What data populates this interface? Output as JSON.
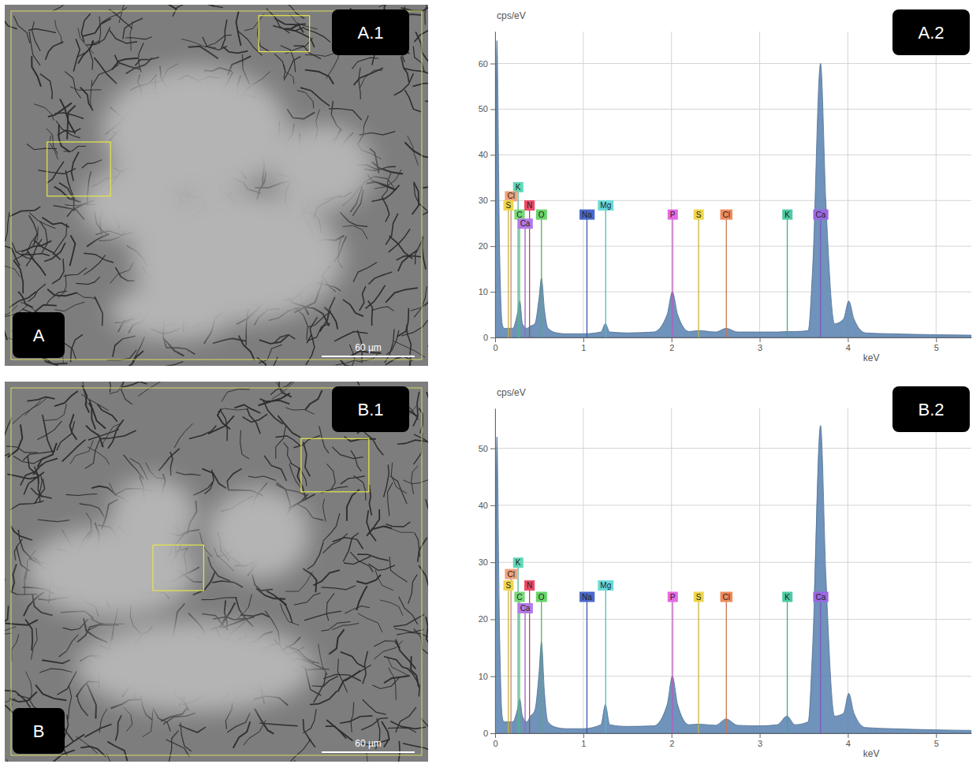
{
  "images": [
    {
      "letter": "A",
      "title": "A.1",
      "scale_bar": "60 µm"
    },
    {
      "letter": "B",
      "title": "B.1",
      "scale_bar": "60 µm"
    }
  ],
  "chart_data": [
    {
      "type": "area",
      "title": "A.2",
      "y_label": "cps/eV",
      "x_label": "keV",
      "color": "#5f87b3",
      "grid": true,
      "xlim": [
        0,
        5.4
      ],
      "ylim": [
        0,
        67
      ],
      "xticks": [
        0,
        1,
        2,
        3,
        4,
        5
      ],
      "yticks": [
        0,
        10,
        20,
        30,
        40,
        50,
        60
      ],
      "x": [
        0,
        0.02,
        0.05,
        0.08,
        0.1,
        0.2,
        0.25,
        0.28,
        0.31,
        0.36,
        0.4,
        0.45,
        0.5,
        0.525,
        0.56,
        0.6,
        0.7,
        0.8,
        1.0,
        1.2,
        1.25,
        1.3,
        1.5,
        1.8,
        1.95,
        2.01,
        2.07,
        2.2,
        2.31,
        2.5,
        2.62,
        2.75,
        3.0,
        3.2,
        3.31,
        3.4,
        3.55,
        3.6,
        3.69,
        3.75,
        3.85,
        3.95,
        4.01,
        4.07,
        4.2,
        4.5,
        5.0,
        5.4
      ],
      "values": [
        0,
        65,
        20,
        3,
        2,
        2,
        5,
        8,
        3,
        2,
        2.5,
        3,
        9,
        13,
        6,
        2,
        1,
        0.8,
        0.8,
        1.2,
        3,
        1.2,
        1,
        1.2,
        5,
        10,
        5,
        1.3,
        1.5,
        1.2,
        2,
        1.2,
        1.2,
        1.2,
        1.3,
        1.3,
        1.5,
        15,
        60,
        30,
        3,
        4,
        8,
        4,
        1,
        0.8,
        0.6,
        0.5
      ],
      "annotations": [
        {
          "text": "K",
          "x": 0.26,
          "y": 33,
          "color": "#5fd9b8"
        },
        {
          "text": "Cl",
          "x": 0.18,
          "y": 31,
          "color": "#f2a27a"
        },
        {
          "text": "S",
          "x": 0.15,
          "y": 29,
          "color": "#eed64a"
        },
        {
          "text": "N",
          "x": 0.39,
          "y": 29,
          "color": "#ec4a68"
        },
        {
          "text": "C",
          "x": 0.277,
          "y": 27,
          "color": "#78d878"
        },
        {
          "text": "O",
          "x": 0.525,
          "y": 27,
          "color": "#68d468"
        },
        {
          "text": "Ca",
          "x": 0.34,
          "y": 25,
          "color": "#b47ae8"
        },
        {
          "text": "Na",
          "x": 1.041,
          "y": 27,
          "color": "#4a68cc"
        },
        {
          "text": "Mg",
          "x": 1.254,
          "y": 29,
          "color": "#6adada"
        },
        {
          "text": "P",
          "x": 2.013,
          "y": 27,
          "color": "#e46ae4"
        },
        {
          "text": "S",
          "x": 2.307,
          "y": 27,
          "color": "#eed64a"
        },
        {
          "text": "Cl",
          "x": 2.622,
          "y": 27,
          "color": "#f08a5a"
        },
        {
          "text": "K",
          "x": 3.313,
          "y": 27,
          "color": "#4ccaa4"
        },
        {
          "text": "Ca",
          "x": 3.691,
          "y": 27,
          "color": "#9a68e4"
        }
      ]
    },
    {
      "type": "area",
      "title": "B.2",
      "y_label": "cps/eV",
      "x_label": "keV",
      "color": "#5f87b3",
      "grid": true,
      "xlim": [
        0,
        5.4
      ],
      "ylim": [
        0,
        57
      ],
      "xticks": [
        0,
        1,
        2,
        3,
        4,
        5
      ],
      "yticks": [
        0,
        10,
        20,
        30,
        40,
        50
      ],
      "x": [
        0,
        0.02,
        0.05,
        0.08,
        0.1,
        0.2,
        0.25,
        0.28,
        0.31,
        0.36,
        0.4,
        0.45,
        0.5,
        0.525,
        0.56,
        0.6,
        0.7,
        0.8,
        1.0,
        1.2,
        1.25,
        1.3,
        1.5,
        1.8,
        1.95,
        2.01,
        2.07,
        2.2,
        2.31,
        2.5,
        2.62,
        2.75,
        3.0,
        3.2,
        3.31,
        3.4,
        3.55,
        3.6,
        3.69,
        3.75,
        3.85,
        3.95,
        4.01,
        4.07,
        4.2,
        4.5,
        5.0,
        5.4
      ],
      "values": [
        0,
        52,
        18,
        3,
        2,
        2,
        4,
        6,
        3,
        2,
        3,
        4,
        11,
        16,
        7,
        2,
        1,
        0.8,
        0.8,
        1.5,
        5,
        1.5,
        1.2,
        1.3,
        5,
        10,
        5,
        1.5,
        1.6,
        1.4,
        2.5,
        1.4,
        1.3,
        1.5,
        3,
        1.5,
        2,
        15,
        54,
        28,
        3,
        3.5,
        7,
        3.5,
        1,
        0.8,
        0.6,
        0.5
      ],
      "annotations": [
        {
          "text": "K",
          "x": 0.26,
          "y": 30,
          "color": "#5fd9b8"
        },
        {
          "text": "Cl",
          "x": 0.18,
          "y": 28,
          "color": "#f2a27a"
        },
        {
          "text": "S",
          "x": 0.15,
          "y": 26,
          "color": "#eed64a"
        },
        {
          "text": "N",
          "x": 0.39,
          "y": 26,
          "color": "#ec4a68"
        },
        {
          "text": "C",
          "x": 0.277,
          "y": 24,
          "color": "#78d878"
        },
        {
          "text": "O",
          "x": 0.525,
          "y": 24,
          "color": "#68d468"
        },
        {
          "text": "Ca",
          "x": 0.34,
          "y": 22,
          "color": "#b47ae8"
        },
        {
          "text": "Na",
          "x": 1.041,
          "y": 24,
          "color": "#4a68cc"
        },
        {
          "text": "Mg",
          "x": 1.254,
          "y": 26,
          "color": "#6adada"
        },
        {
          "text": "P",
          "x": 2.013,
          "y": 24,
          "color": "#e46ae4"
        },
        {
          "text": "S",
          "x": 2.307,
          "y": 24,
          "color": "#eed64a"
        },
        {
          "text": "Cl",
          "x": 2.622,
          "y": 24,
          "color": "#f08a5a"
        },
        {
          "text": "K",
          "x": 3.313,
          "y": 24,
          "color": "#4ccaa4"
        },
        {
          "text": "Ca",
          "x": 3.691,
          "y": 24,
          "color": "#9a68e4"
        }
      ]
    }
  ]
}
